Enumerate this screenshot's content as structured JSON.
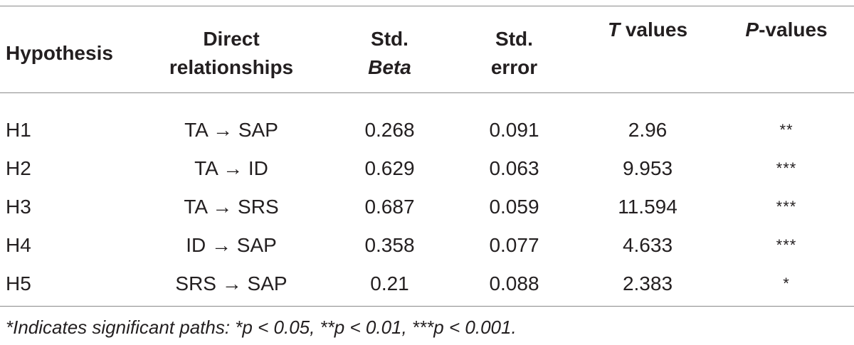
{
  "table": {
    "headers": {
      "hypothesis": "Hypothesis",
      "relationships_line1": "Direct",
      "relationships_line2": "relationships",
      "beta_line1": "Std.",
      "beta_line2": "Beta",
      "error_line1": "Std.",
      "error_line2": "error",
      "t_italic": "T",
      "t_rest": " values",
      "p_italic": "P",
      "p_rest": "-values"
    },
    "rows": [
      {
        "hypothesis": "H1",
        "relationship": "TA → SAP",
        "beta": "0.268",
        "error": "0.091",
        "t": "2.96",
        "p": "**"
      },
      {
        "hypothesis": "H2",
        "relationship": "TA → ID",
        "beta": "0.629",
        "error": "0.063",
        "t": "9.953",
        "p": "***"
      },
      {
        "hypothesis": "H3",
        "relationship": "TA → SRS",
        "beta": "0.687",
        "error": "0.059",
        "t": "11.594",
        "p": "***"
      },
      {
        "hypothesis": "H4",
        "relationship": "ID → SAP",
        "beta": "0.358",
        "error": "0.077",
        "t": "4.633",
        "p": "***"
      },
      {
        "hypothesis": "H5",
        "relationship": "SRS → SAP",
        "beta": "0.21",
        "error": "0.088",
        "t": "2.383",
        "p": "*"
      }
    ],
    "footnote": "*Indicates significant paths: *p < 0.05, **p < 0.01, ***p < 0.001."
  }
}
